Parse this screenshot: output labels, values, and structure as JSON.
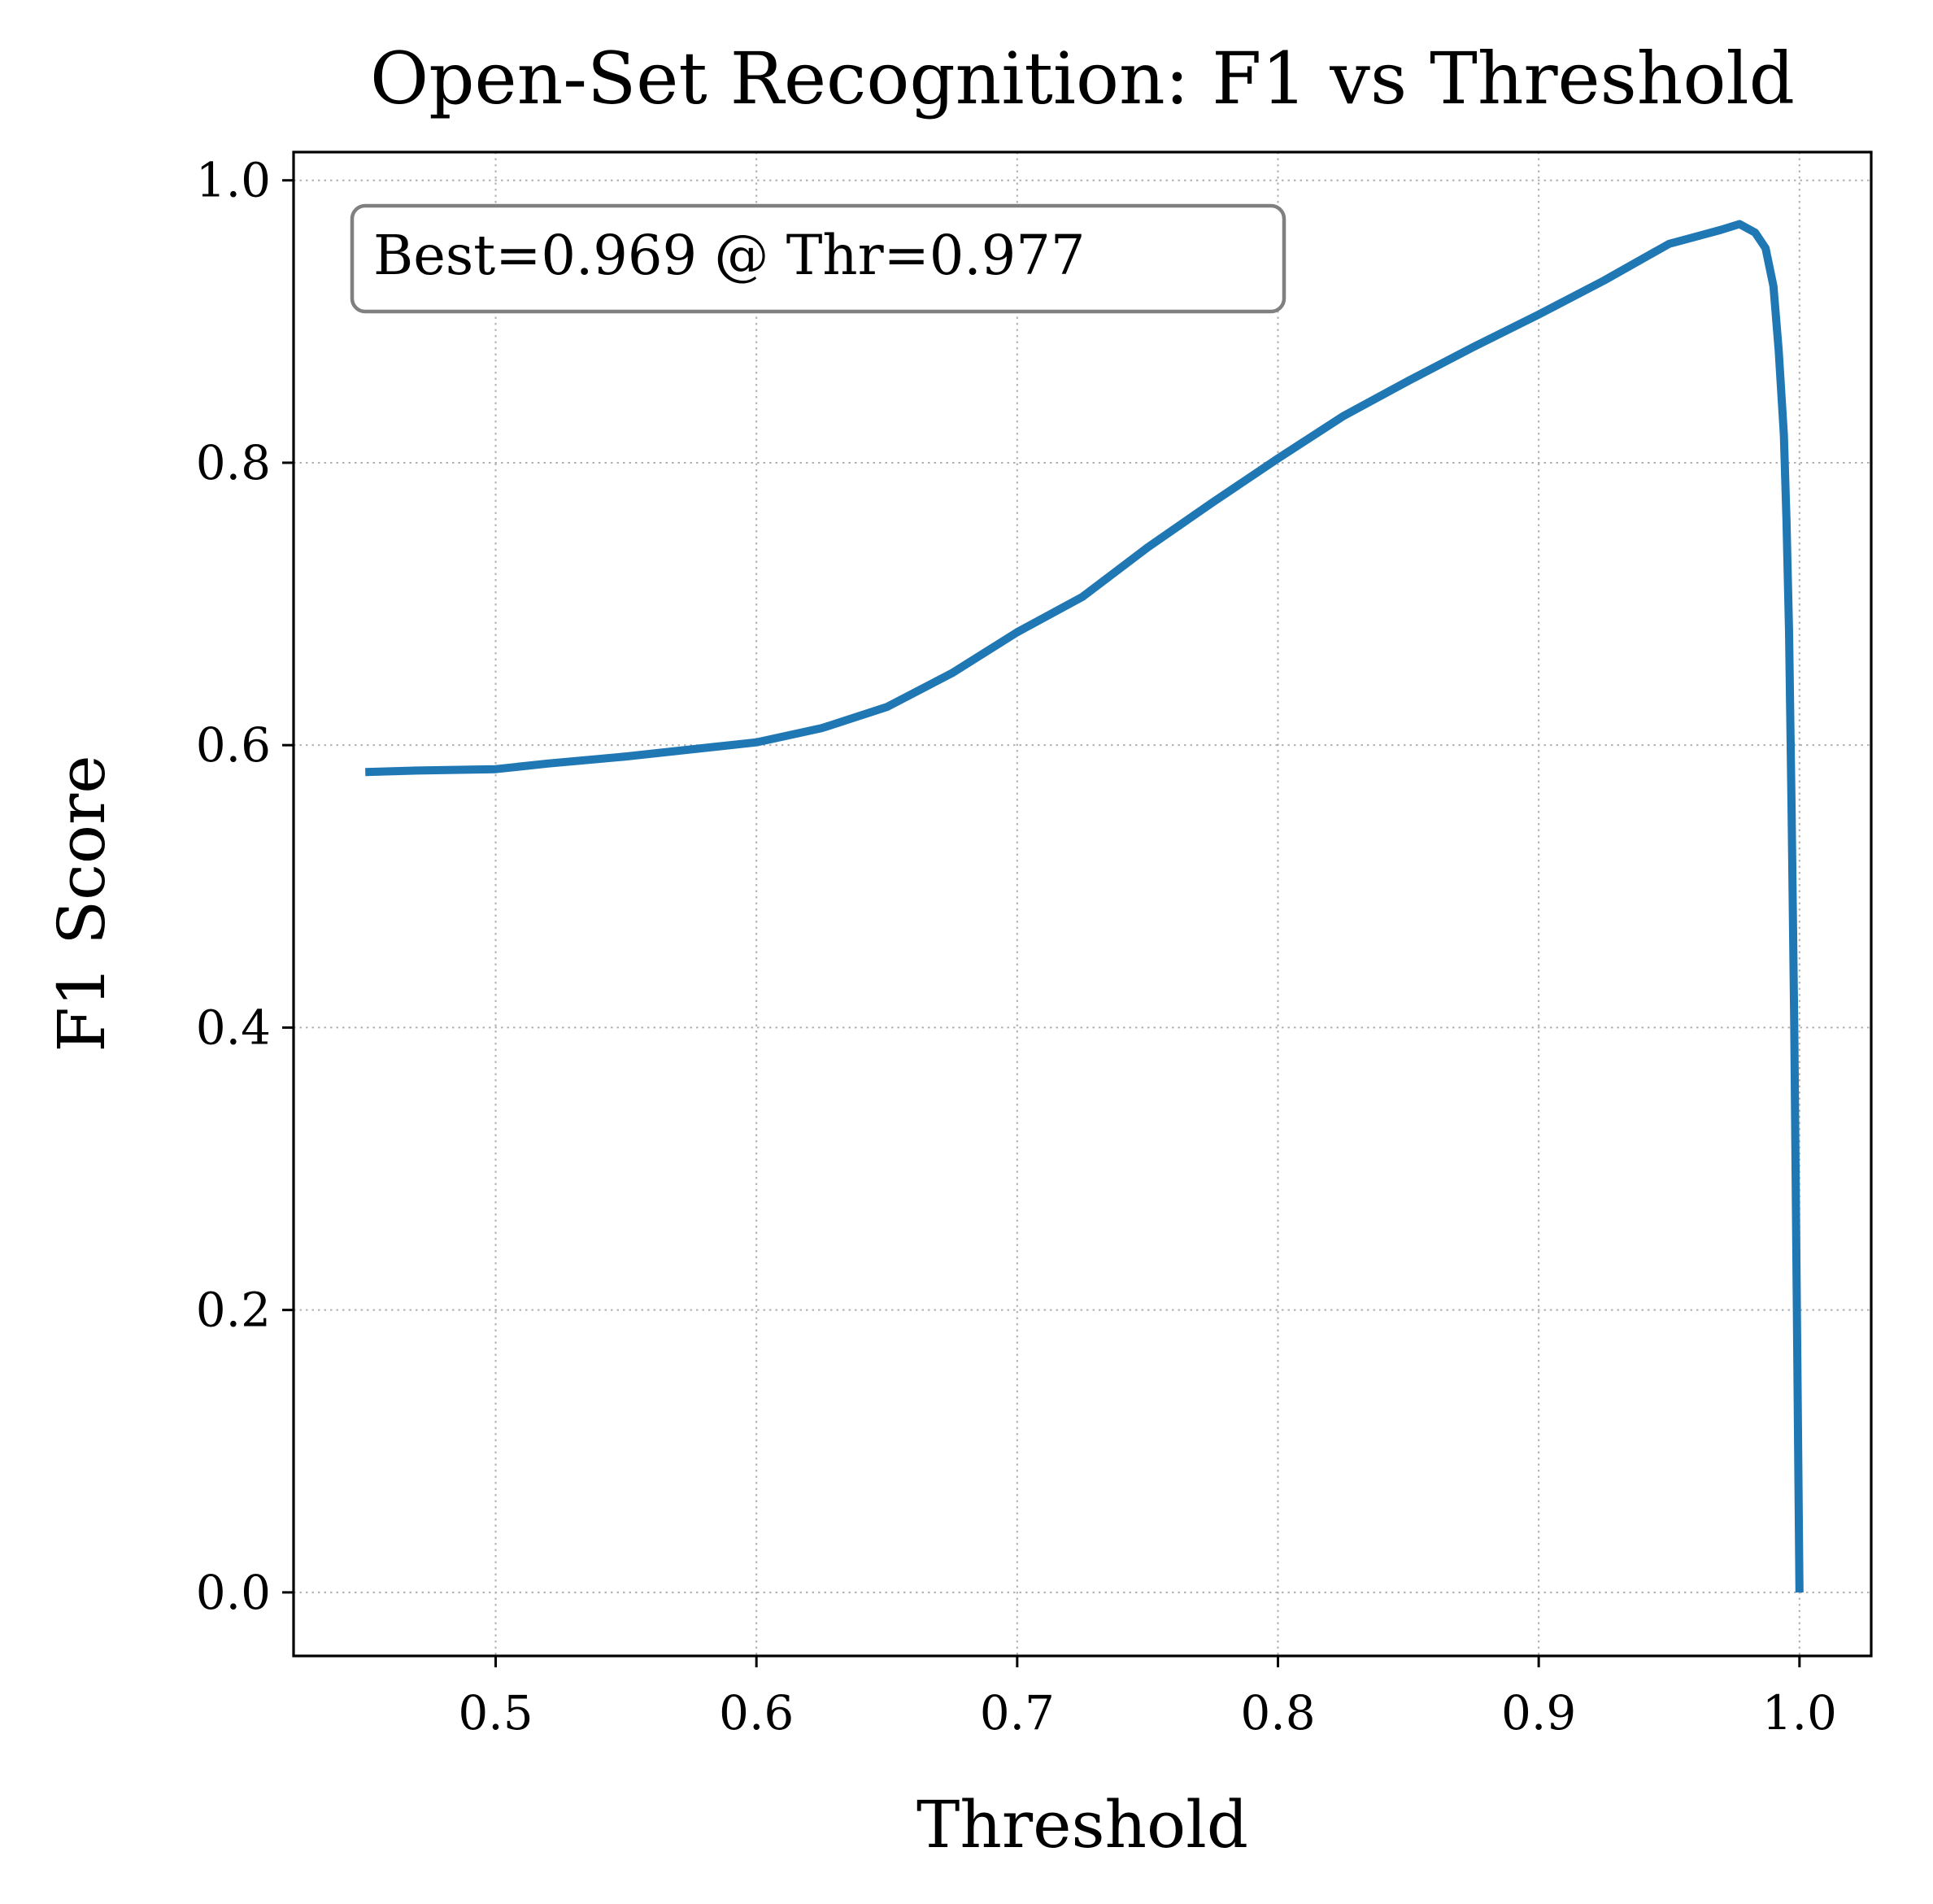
{
  "chart_data": {
    "type": "line",
    "title": "Open-Set Recognition: F1 vs Threshold",
    "xlabel": "Threshold",
    "ylabel": "F1 Score",
    "xlim": [
      0.4225,
      1.0275
    ],
    "ylim": [
      -0.045,
      1.02
    ],
    "xticks": [
      0.5,
      0.6,
      0.7,
      0.8,
      0.9,
      1.0
    ],
    "xtick_labels": [
      "0.5",
      "0.6",
      "0.7",
      "0.8",
      "0.9",
      "1.0"
    ],
    "yticks": [
      0.0,
      0.2,
      0.4,
      0.6,
      0.8,
      1.0
    ],
    "ytick_labels": [
      "0.0",
      "0.2",
      "0.4",
      "0.6",
      "0.8",
      "1.0"
    ],
    "grid": true,
    "legend": "none",
    "annotation": "Best=0.969 @ Thr=0.977",
    "annotation_position": "top-left",
    "series": [
      {
        "color": "#1f77b4",
        "x": [
          0.45,
          0.47,
          0.5,
          0.52,
          0.55,
          0.575,
          0.6,
          0.625,
          0.65,
          0.675,
          0.7,
          0.725,
          0.75,
          0.775,
          0.8,
          0.825,
          0.85,
          0.875,
          0.9,
          0.925,
          0.95,
          0.96,
          0.97,
          0.977,
          0.983,
          0.987,
          0.99,
          0.992,
          0.994,
          0.995,
          0.996,
          0.997,
          0.998,
          0.999,
          1.0
        ],
        "y": [
          0.581,
          0.582,
          0.583,
          0.587,
          0.592,
          0.597,
          0.602,
          0.612,
          0.627,
          0.651,
          0.68,
          0.705,
          0.74,
          0.772,
          0.803,
          0.833,
          0.858,
          0.882,
          0.905,
          0.929,
          0.955,
          0.96,
          0.965,
          0.969,
          0.963,
          0.952,
          0.925,
          0.88,
          0.82,
          0.76,
          0.68,
          0.55,
          0.4,
          0.2,
          0.0
        ]
      }
    ]
  }
}
